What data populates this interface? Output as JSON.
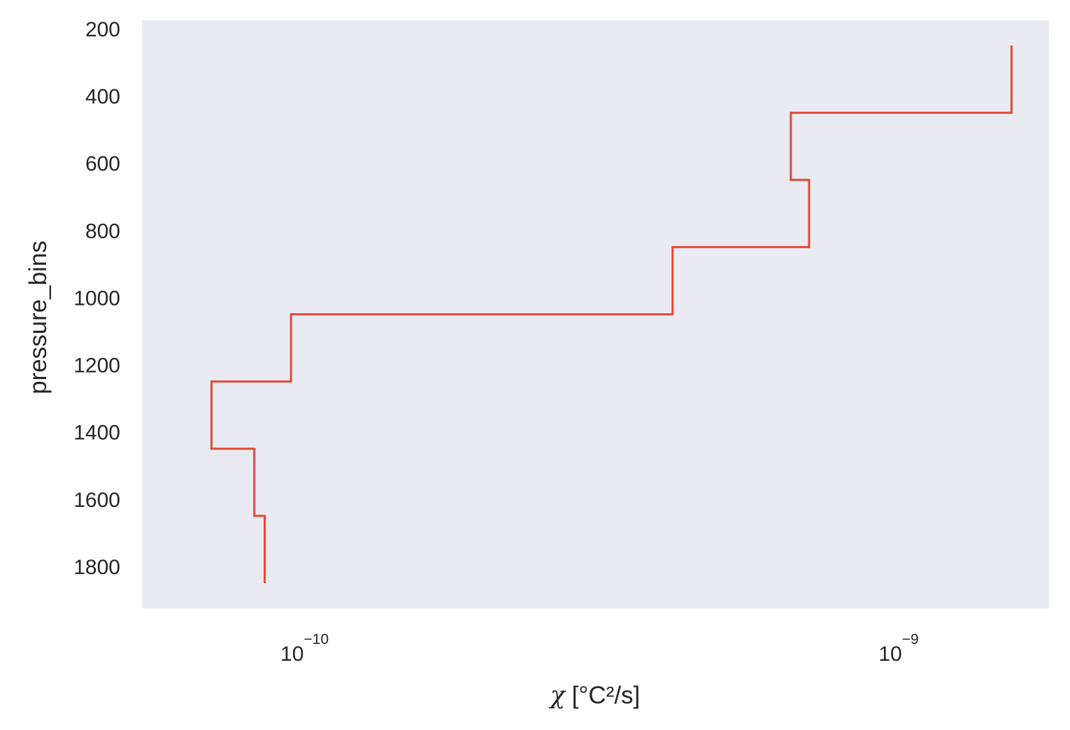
{
  "chart_data": {
    "type": "line",
    "drawstyle": "steps",
    "title": "",
    "xlabel": {
      "symbol": "χ",
      "units": " [°C²/s]"
    },
    "ylabel": "pressure_bins",
    "xscale": "log",
    "xlim": [
      5.5e-11,
      1.85e-09
    ],
    "ylim": [
      1925,
      175
    ],
    "y_inverted": true,
    "grid": false,
    "legend": null,
    "background_color": "#eaeaf2",
    "line_color": "#e24a33",
    "x_ticks": [
      {
        "value": 1e-10,
        "base": "10",
        "exponent": "−10"
      },
      {
        "value": 1e-09,
        "base": "10",
        "exponent": "−9"
      }
    ],
    "y_ticks": [
      200,
      400,
      600,
      800,
      1000,
      1200,
      1400,
      1600,
      1800
    ],
    "y_tick_labels": [
      "200",
      "400",
      "600",
      "800",
      "1000",
      "1200",
      "1400",
      "1600",
      "1800"
    ],
    "series": [
      {
        "name": "chi",
        "y_start": [
          250,
          450,
          650,
          850,
          1050,
          1250,
          1450,
          1650
        ],
        "y_end": [
          450,
          650,
          850,
          1050,
          1250,
          1450,
          1650,
          1850
        ],
        "x": [
          1.6e-09,
          6.8e-10,
          7.3e-10,
          4.3e-10,
          9.8e-11,
          7.2e-11,
          8.5e-11,
          8.85e-11
        ]
      }
    ]
  }
}
